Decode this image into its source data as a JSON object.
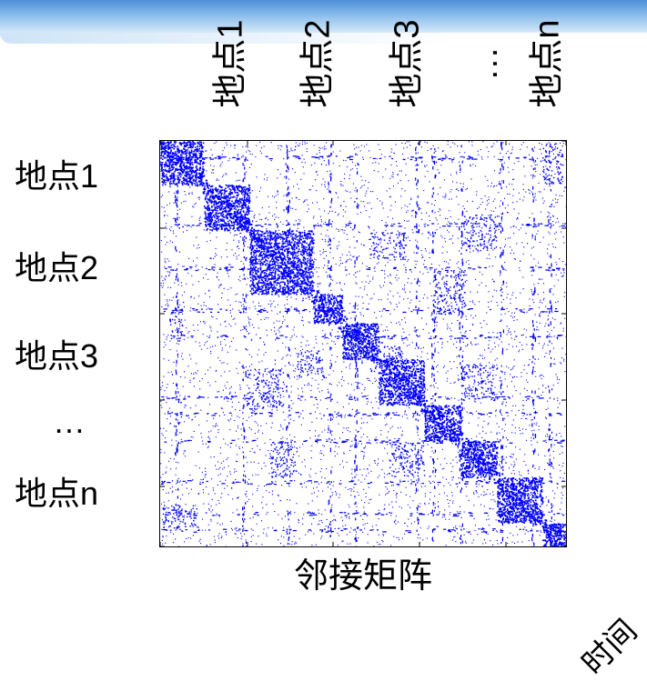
{
  "columns": [
    "地点1",
    "地点2",
    "地点3",
    "…",
    "地点n"
  ],
  "rows": [
    "地点1",
    "地点2",
    "地点3",
    "…",
    "地点n"
  ],
  "xlabel": "邻接矩阵",
  "time_label": "时间",
  "colors": {
    "matrix_dots": "#0000ff",
    "banner_dark": "#4d8fd6",
    "banner_light": "#e6f2fc",
    "frame": "#000000"
  }
}
